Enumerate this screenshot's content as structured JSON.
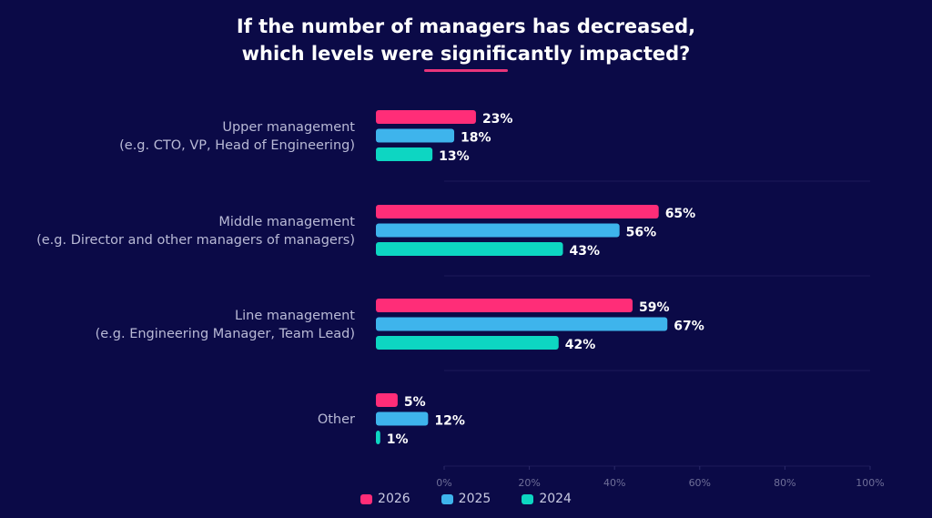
{
  "title": {
    "line1": "If the number of managers has decreased,",
    "line2": "which levels were significantly impacted?",
    "underline_color": "#e8357a"
  },
  "chart_data": {
    "type": "bar",
    "orientation": "horizontal",
    "categories": [
      [
        "Upper management",
        "(e.g. CTO, VP, Head of Engineering)"
      ],
      [
        "Middle management",
        "(e.g. Director and other managers of managers)"
      ],
      [
        "Line management",
        "(e.g. Engineering Manager, Team Lead)"
      ],
      [
        "Other"
      ]
    ],
    "series": [
      {
        "name": "2026",
        "color": "#ff2d78",
        "values": [
          23,
          65,
          59,
          5
        ]
      },
      {
        "name": "2025",
        "color": "#3eb4ec",
        "values": [
          18,
          56,
          67,
          12
        ]
      },
      {
        "name": "2024",
        "color": "#0dd6c2",
        "values": [
          13,
          43,
          42,
          1
        ]
      }
    ],
    "value_suffix": "%",
    "xlim": [
      0,
      100
    ],
    "xticks": [
      "0%",
      "20%",
      "40%",
      "60%",
      "80%",
      "100%"
    ],
    "grid": false,
    "legend_position": "bottom-center"
  }
}
